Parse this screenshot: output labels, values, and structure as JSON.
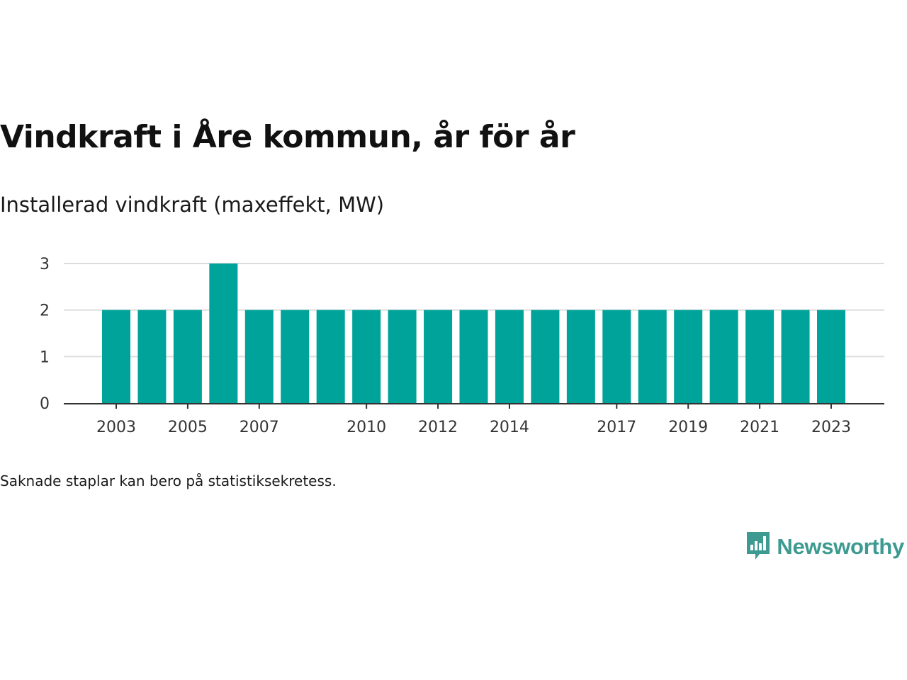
{
  "header": {
    "title": "Vindkraft i Åre kommun, år för år",
    "subtitle": "Installerad vindkraft (maxeffekt, MW)"
  },
  "footer": {
    "note": "Saknade staplar kan bero på statistiksekretess.",
    "brand": "Newsworthy"
  },
  "colors": {
    "bar": "#00a39a",
    "grid": "#dddddd",
    "axis": "#333333",
    "brand": "#3c9a91"
  },
  "icons": {
    "brand_logo": "bar-chart-speech-bubble-icon"
  },
  "chart_data": {
    "type": "bar",
    "categories": [
      "2003",
      "2004",
      "2005",
      "2006",
      "2007",
      "2008",
      "2009",
      "2010",
      "2011",
      "2012",
      "2013",
      "2014",
      "2015",
      "2016",
      "2017",
      "2018",
      "2019",
      "2020",
      "2021",
      "2022",
      "2023"
    ],
    "values": [
      2,
      2,
      2,
      3,
      2,
      2,
      2,
      2,
      2,
      2,
      2,
      2,
      2,
      2,
      2,
      2,
      2,
      2,
      2,
      2,
      2
    ],
    "x_tick_labels": [
      "2003",
      "2005",
      "2007",
      "2010",
      "2012",
      "2014",
      "2017",
      "2019",
      "2021",
      "2023"
    ],
    "y_ticks": [
      0,
      1,
      2,
      3
    ],
    "ylim": [
      0,
      3
    ],
    "title": "Vindkraft i Åre kommun, år för år",
    "subtitle": "Installerad vindkraft (maxeffekt, MW)",
    "xlabel": "",
    "ylabel": "",
    "grid": true,
    "legend": "none"
  }
}
